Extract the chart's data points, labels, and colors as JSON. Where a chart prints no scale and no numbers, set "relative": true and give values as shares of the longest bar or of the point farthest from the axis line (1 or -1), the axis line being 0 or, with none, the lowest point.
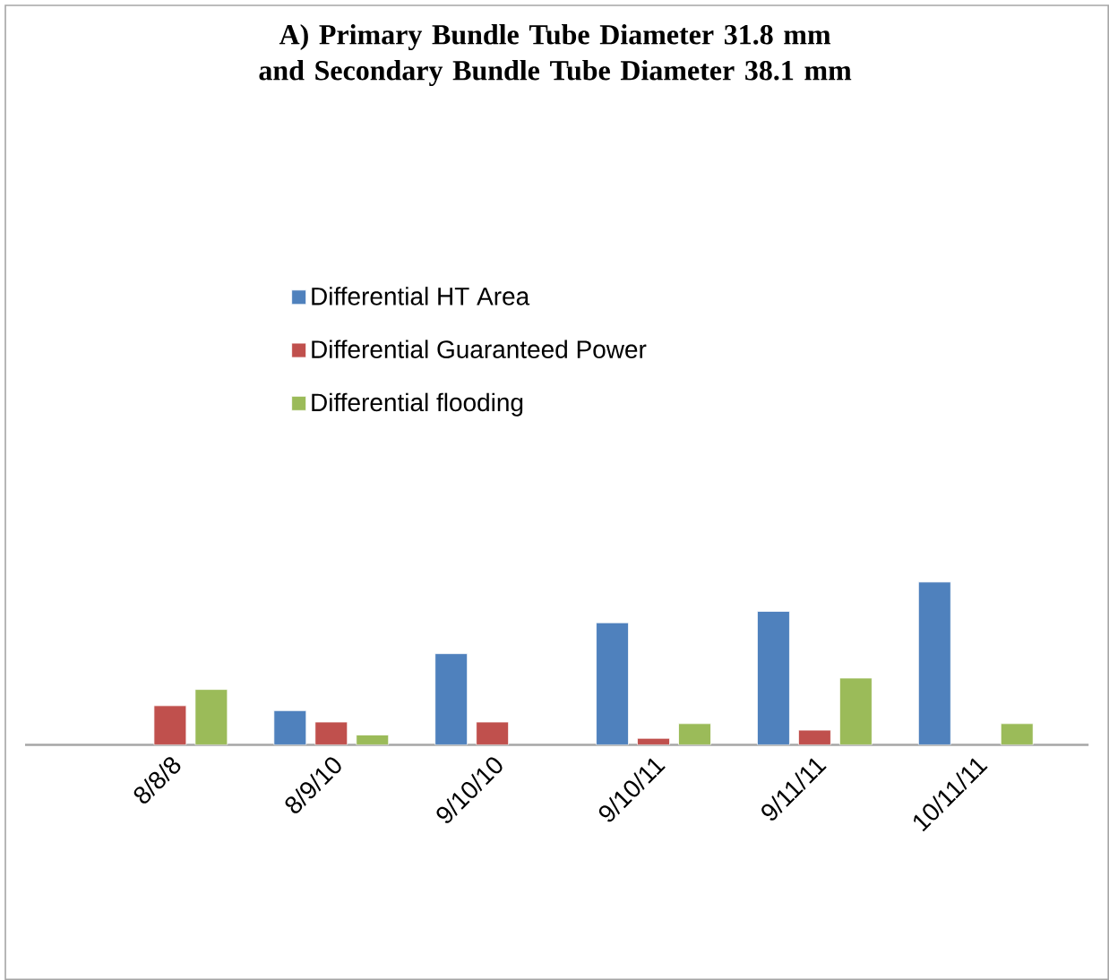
{
  "chart_data": {
    "type": "bar",
    "title": "A) Primary Bundle Tube Diameter 31.8 mm and Secondary Bundle Tube Diameter 38.1 mm",
    "relative": true,
    "legend": "top",
    "categories": [
      "8/8/8",
      "8/9/10",
      "9/10/10",
      "9/10/11",
      "9/11/11",
      "10/11/11"
    ],
    "series": [
      {
        "name": "Differential HT Area",
        "color": "#4f81bd",
        "values": [
          null,
          0.21,
          0.56,
          0.75,
          0.82,
          1
        ]
      },
      {
        "name": "Differential Guaranteed Power",
        "color": "#c0504d",
        "values": [
          0.24,
          0.14,
          0.14,
          0.04,
          0.09,
          null
        ]
      },
      {
        "name": "Differential flooding",
        "color": "#9bbb59",
        "values": [
          0.34,
          0.06,
          null,
          0.13,
          0.41,
          0.13
        ]
      }
    ]
  }
}
